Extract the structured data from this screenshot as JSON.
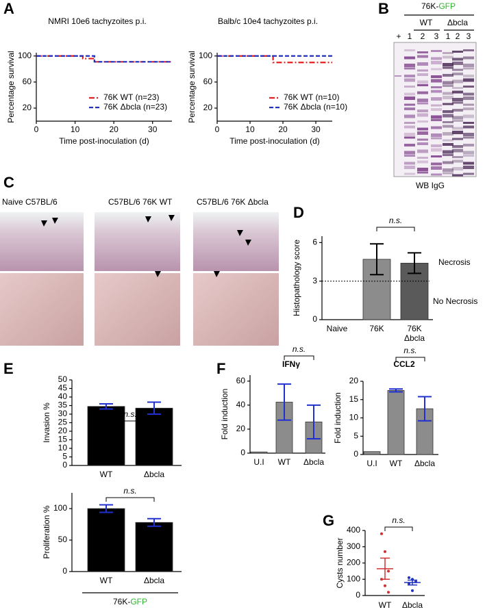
{
  "panel_labels": [
    "A",
    "B",
    "C",
    "D",
    "E",
    "F",
    "G"
  ],
  "blot": {
    "title": [
      "76K-",
      "GFP"
    ],
    "groups": [
      "WT",
      "Δbcla"
    ],
    "lanes": [
      "+",
      "1",
      "2",
      "3",
      "1",
      "2",
      "3"
    ],
    "caption": "WB IgG"
  },
  "histology": {
    "labels": [
      "Naive C57BL/6",
      "C57BL/6  76K WT",
      "C57BL/6 76K Δbcla"
    ]
  },
  "chart_data": [
    {
      "type": "line",
      "title": "NMRI 10e6 tachyzoites p.i.",
      "xlabel": "Time post-inoculation (d)",
      "ylabel": "Percentage survival",
      "xlim": [
        0,
        35
      ],
      "ylim": [
        0,
        105
      ],
      "xticks": [
        0,
        10,
        20,
        30
      ],
      "yticks": [
        20,
        60,
        100
      ],
      "series": [
        {
          "name": "76K WT (n=23)",
          "color": "#e02020",
          "dash": "dashdot",
          "x": [
            0,
            12,
            12,
            15,
            15,
            35
          ],
          "values": [
            100,
            100,
            96,
            96,
            91,
            91
          ]
        },
        {
          "name": "76K Δbcla (n=23)",
          "color": "#2030c0",
          "dash": "dashed",
          "x": [
            0,
            15,
            15,
            35
          ],
          "values": [
            100,
            100,
            91,
            91
          ]
        }
      ]
    },
    {
      "type": "line",
      "title": "Balb/c 10e4 tachyzoites p.i.",
      "xlabel": "Time post-inoculation (d)",
      "ylabel": "Percentage survival",
      "xlim": [
        0,
        35
      ],
      "ylim": [
        0,
        105
      ],
      "xticks": [
        0,
        10,
        20,
        30
      ],
      "yticks": [
        20,
        60,
        100
      ],
      "series": [
        {
          "name": "76K WT (n=10)",
          "color": "#e02020",
          "dash": "dashdot",
          "x": [
            0,
            17,
            17,
            35
          ],
          "values": [
            100,
            100,
            90,
            90
          ]
        },
        {
          "name": "76K Δbcla (n=10)",
          "color": "#2030c0",
          "dash": "dashed",
          "x": [
            0,
            35
          ],
          "values": [
            100,
            100
          ]
        }
      ]
    },
    {
      "type": "bar",
      "ylabel": "Histopathology score",
      "categories": [
        "Naive",
        "76K",
        "76K Δbcla"
      ],
      "values": [
        0,
        4.7,
        4.4
      ],
      "errors": [
        null,
        1.2,
        0.8
      ],
      "colors": [
        "#999999",
        "#8c8c8c",
        "#5a5a5a"
      ],
      "error_color": "#000000",
      "ylim": [
        0,
        6.5
      ],
      "yticks": [
        0,
        3,
        6
      ],
      "threshold": 3,
      "threshold_labels": [
        "Necrosis",
        "No Necrosis"
      ],
      "significance": "n.s."
    },
    {
      "type": "bar",
      "ylabel": "Invasion %",
      "categories": [
        "WT",
        "Δbcla"
      ],
      "values": [
        34.5,
        33.5
      ],
      "errors": [
        1.5,
        3.5
      ],
      "color": "#000000",
      "error_color": "#2030d0",
      "ylim": [
        0,
        50
      ],
      "yticks": [
        0,
        5,
        10,
        15,
        20,
        25,
        30,
        35,
        40,
        45,
        50
      ],
      "significance": "n.s."
    },
    {
      "type": "bar",
      "ylabel": "Proliferation %",
      "categories": [
        "WT",
        "Δbcla"
      ],
      "values": [
        100,
        78
      ],
      "errors": [
        6,
        6
      ],
      "color": "#000000",
      "error_color": "#2030d0",
      "ylim": [
        0,
        125
      ],
      "yticks": [
        0,
        50,
        100
      ],
      "significance": "n.s.",
      "group_label": [
        "76K-",
        "GFP"
      ],
      "group_label_colors": [
        "#000000",
        "#2db52d"
      ]
    },
    {
      "type": "bar",
      "title": "IFNγ",
      "ylabel": "Fold induction",
      "categories": [
        "U.I",
        "WT",
        "Δbcla"
      ],
      "values": [
        1,
        42.5,
        26
      ],
      "errors": [
        null,
        15,
        14
      ],
      "color": "#8c8c8c",
      "error_color": "#2030d0",
      "ylim": [
        0,
        65
      ],
      "yticks": [
        0,
        20,
        40,
        60
      ],
      "significance": "n.s."
    },
    {
      "type": "bar",
      "title": "CCL2",
      "ylabel": "Fold induction",
      "categories": [
        "U.I",
        "WT",
        "Δbcla"
      ],
      "values": [
        0.8,
        17.5,
        12.5
      ],
      "errors": [
        null,
        0.4,
        3.3
      ],
      "color": "#8c8c8c",
      "error_color": "#2030d0",
      "ylim": [
        0,
        20
      ],
      "yticks": [
        0,
        5,
        10,
        15,
        20
      ],
      "significance": "n.s."
    },
    {
      "type": "strip",
      "ylabel": "Cysts number",
      "categories": [
        "WT",
        "Δbcla"
      ],
      "points": [
        [
          380,
          270,
          150,
          100,
          60,
          20
        ],
        [
          110,
          100,
          85,
          75,
          30
        ]
      ],
      "means": [
        165,
        80
      ],
      "sems": [
        65,
        15
      ],
      "colors": [
        "#d03030",
        "#2030c0"
      ],
      "ylim": [
        0,
        400
      ],
      "yticks": [
        0,
        100,
        200,
        300,
        400
      ],
      "significance": "n.s."
    }
  ]
}
